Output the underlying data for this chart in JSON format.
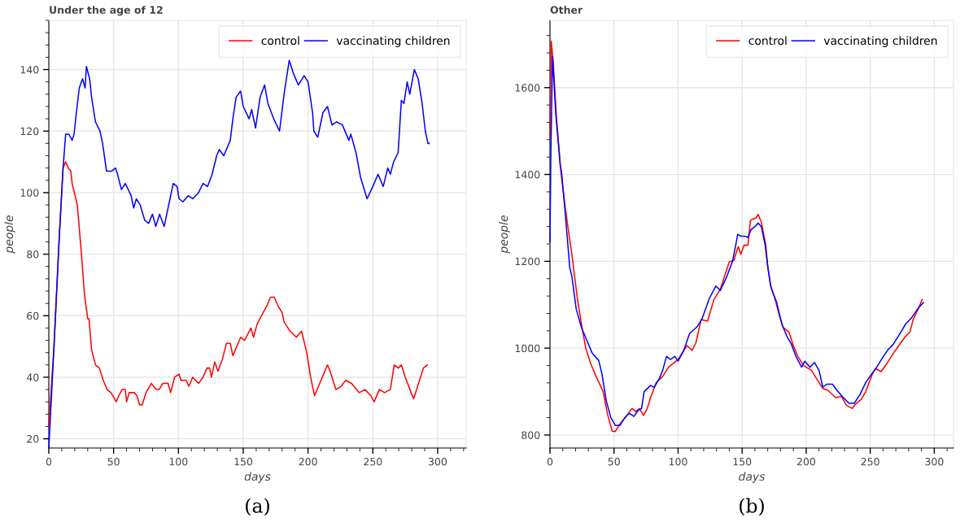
{
  "chart_data": [
    {
      "type": "line",
      "title": "Under the age of 12",
      "xlabel": "days",
      "ylabel": "people",
      "xlim": [
        0,
        322
      ],
      "ylim": [
        17,
        156
      ],
      "xticks": [
        0,
        50,
        100,
        150,
        200,
        250,
        300
      ],
      "yticks": [
        20,
        40,
        60,
        80,
        100,
        120,
        140
      ],
      "grid": true,
      "legend": "top right",
      "annotations": [
        "(a)"
      ],
      "series": [
        {
          "name": "control",
          "color": "#ff0000",
          "x": [
            0,
            4,
            8,
            11,
            13,
            15,
            17,
            18,
            22,
            25,
            27.5,
            30,
            31,
            33,
            36,
            39,
            42,
            45,
            48,
            52,
            54,
            56.5,
            59,
            60,
            62,
            66,
            68,
            70,
            72,
            75,
            79,
            83,
            85,
            88,
            92,
            94,
            97,
            100.5,
            102,
            106,
            108,
            111,
            115.5,
            119,
            122,
            124,
            125.5,
            128,
            130.5,
            134,
            137,
            140,
            142,
            148,
            151,
            156,
            158,
            160.5,
            164,
            168,
            171,
            174,
            177,
            180,
            181.5,
            186,
            191,
            195,
            199,
            202,
            205,
            208,
            213,
            215,
            217,
            221.5,
            225.5,
            229,
            233.5,
            239.5,
            244,
            248.5,
            251,
            255,
            259,
            263.5,
            266.5,
            269.5,
            272,
            275,
            279.5,
            281.5,
            284.5,
            289,
            292
          ],
          "values": [
            24,
            50,
            85,
            108,
            110,
            108,
            107,
            103,
            96,
            81,
            67,
            59,
            59,
            49,
            44,
            43,
            39,
            36,
            35,
            32,
            34,
            36,
            36,
            32,
            35,
            35,
            34,
            31,
            31,
            35,
            38,
            36,
            36,
            38,
            38,
            35,
            40,
            41,
            39,
            39,
            37,
            40,
            38,
            40,
            43,
            43,
            40,
            45,
            42,
            46,
            51,
            51,
            47,
            53,
            52,
            56,
            53,
            57,
            60,
            63,
            66,
            66,
            63,
            61,
            58,
            55,
            53,
            55,
            48,
            40,
            34,
            37,
            42,
            44,
            42,
            36,
            37,
            39,
            38,
            35,
            36,
            34,
            32,
            36,
            35,
            36,
            44,
            43,
            44,
            40,
            35,
            33,
            37,
            43,
            44
          ]
        },
        {
          "name": "vaccinating children",
          "color": "#0000ff",
          "x": [
            0,
            4,
            8,
            11,
            13,
            15.5,
            18,
            19.5,
            21,
            23.5,
            26,
            28,
            29,
            31.5,
            33,
            36,
            39.5,
            41.5,
            44.5,
            48.5,
            51.5,
            53,
            56,
            59,
            63.5,
            65.5,
            67.5,
            70.5,
            74,
            77,
            80,
            82.5,
            85.5,
            89,
            93.5,
            96,
            99,
            100.5,
            103.5,
            107.5,
            111,
            115.5,
            119,
            122.5,
            126,
            129.5,
            131.5,
            135,
            140,
            142,
            144.5,
            148,
            150,
            154.5,
            156.5,
            159.5,
            163,
            166.5,
            169,
            173.5,
            178,
            181.5,
            185.5,
            188.5,
            192.5,
            197,
            200,
            203.5,
            204.5,
            207.5,
            211.5,
            215,
            218.5,
            222,
            226.5,
            231.5,
            233,
            237,
            240.5,
            245.5,
            250,
            254,
            258,
            261.5,
            263.5,
            266,
            269.5,
            272,
            274,
            276.5,
            278.5,
            282,
            285,
            288,
            290.5,
            292.5,
            293.5
          ],
          "values": [
            17,
            50,
            85,
            108,
            119,
            119,
            117,
            119,
            125,
            134,
            137,
            134,
            141,
            137,
            131,
            123,
            120,
            116,
            107,
            107,
            108,
            106,
            101,
            103,
            99,
            95,
            98,
            96,
            91,
            90,
            93,
            89,
            93,
            89,
            98,
            103,
            102,
            98,
            97,
            99,
            98,
            100,
            103,
            102,
            106,
            112,
            114,
            112,
            117,
            124,
            131,
            133,
            128,
            124,
            127,
            121,
            131,
            135,
            129,
            124,
            120,
            132,
            143,
            139,
            135,
            138,
            136,
            126,
            120,
            118,
            126,
            128,
            122,
            123,
            122,
            117,
            119,
            113,
            105,
            98,
            102,
            106,
            102,
            108,
            106,
            110,
            113,
            130,
            129,
            136,
            132,
            140,
            137,
            129,
            120,
            116,
            116
          ]
        }
      ]
    },
    {
      "type": "line",
      "title": "Other",
      "xlabel": "days",
      "ylabel": "people",
      "xlim": [
        0,
        315
      ],
      "ylim": [
        770,
        1755
      ],
      "xticks": [
        0,
        50,
        100,
        150,
        200,
        250,
        300
      ],
      "yticks": [
        800,
        1000,
        1200,
        1400,
        1600
      ],
      "grid": true,
      "legend": "top right",
      "annotations": [
        "(b)"
      ],
      "series": [
        {
          "name": "control",
          "color": "#ff0000",
          "x": [
            0,
            1,
            2.5,
            5,
            8.5,
            12,
            15,
            17,
            21.5,
            25,
            28,
            32,
            36,
            41.5,
            45,
            48.5,
            51,
            54.5,
            59.5,
            64,
            67,
            70,
            73,
            76,
            78.5,
            83,
            88,
            92.5,
            100,
            107,
            111,
            114,
            118,
            123,
            128,
            133,
            138,
            140,
            143.5,
            147,
            149,
            151.5,
            154.5,
            156.5,
            159,
            161,
            162.5,
            165,
            168.5,
            170,
            172,
            175.5,
            179,
            182,
            186.5,
            190,
            193.5,
            198,
            204,
            208.5,
            213,
            217,
            223,
            227.5,
            231.5,
            236,
            238.5,
            243,
            246.5,
            251.5,
            254,
            258.5,
            263.5,
            269,
            274,
            277.5,
            281,
            283.5,
            287,
            290.5
          ],
          "values": [
            1485,
            1707,
            1661,
            1534,
            1407,
            1322,
            1259,
            1218,
            1112,
            1048,
            999,
            963,
            935,
            900,
            847,
            809,
            808,
            825,
            843,
            861,
            854,
            861,
            845,
            861,
            886,
            921,
            935,
            956,
            974,
            1006,
            995,
            1013,
            1066,
            1062,
            1112,
            1136,
            1181,
            1199,
            1202,
            1234,
            1216,
            1237,
            1237,
            1294,
            1298,
            1300,
            1308,
            1290,
            1237,
            1188,
            1147,
            1115,
            1076,
            1048,
            1037,
            1006,
            981,
            960,
            949,
            928,
            907,
            903,
            886,
            889,
            868,
            861,
            871,
            882,
            900,
            939,
            953,
            946,
            967,
            992,
            1013,
            1027,
            1037,
            1066,
            1087,
            1112
          ]
        },
        {
          "name": "vaccinating children",
          "color": "#0000ff",
          "x": [
            0,
            0.7,
            2,
            4.5,
            8,
            9,
            12,
            15.5,
            17,
            20.5,
            24.5,
            28.5,
            33,
            38,
            40.5,
            44,
            47.5,
            51,
            54.5,
            58.5,
            62,
            65.5,
            69,
            71.5,
            73.5,
            78.5,
            81.5,
            85.5,
            88,
            91,
            94,
            97.5,
            100,
            104.5,
            109,
            114.5,
            118.5,
            124.5,
            129.5,
            133,
            137.5,
            142.5,
            145,
            146.5,
            149,
            152,
            154.5,
            157,
            160,
            162.5,
            165,
            168,
            170,
            172.5,
            177,
            181,
            185,
            188.5,
            192,
            196.5,
            199,
            203,
            206.5,
            210,
            213,
            216,
            220.5,
            224,
            229,
            233.5,
            237.5,
            242,
            246.5,
            251.5,
            255,
            259.5,
            263.5,
            268,
            272.5,
            277.5,
            282,
            287,
            291.5
          ],
          "values": [
            1245,
            1450,
            1672,
            1541,
            1421,
            1407,
            1308,
            1184,
            1168,
            1090,
            1048,
            1020,
            988,
            972,
            942,
            878,
            840,
            822,
            822,
            840,
            850,
            843,
            857,
            861,
            900,
            914,
            910,
            931,
            949,
            981,
            974,
            981,
            970,
            995,
            1034,
            1048,
            1066,
            1115,
            1143,
            1133,
            1161,
            1200,
            1237,
            1262,
            1258,
            1258,
            1255,
            1273,
            1280,
            1288,
            1280,
            1237,
            1188,
            1140,
            1105,
            1055,
            1027,
            1009,
            981,
            956,
            970,
            956,
            967,
            949,
            910,
            917,
            917,
            903,
            886,
            873,
            873,
            893,
            921,
            942,
            956,
            977,
            995,
            1009,
            1030,
            1055,
            1069,
            1090,
            1105
          ]
        }
      ]
    }
  ]
}
